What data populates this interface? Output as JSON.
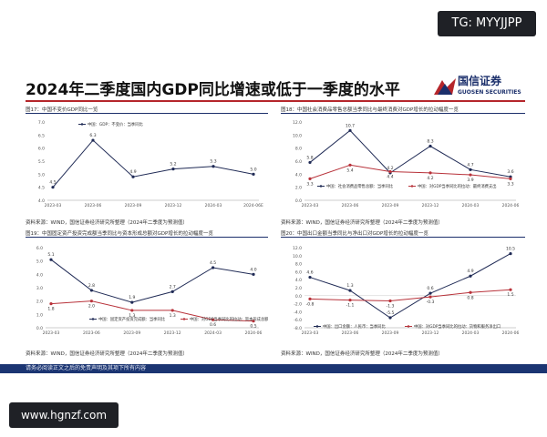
{
  "watermarks": {
    "top": "TG: MYYJJPP",
    "bottom": "www.hgnzf.com"
  },
  "slide": {
    "title": "2024年二季度国内GDP同比增速或低于一季度的水平",
    "logo": {
      "cn": "国信证券",
      "en": "GUOSEN SECURITIES"
    },
    "disclaimer": "请务必阅读正文之后的免责声明及其项下所有内容"
  },
  "colors": {
    "navy": "#1b2f6b",
    "red": "#b5262b",
    "series_blue": "#1f2a55",
    "series_red": "#b8323a"
  },
  "panels": [
    {
      "caption": "图17：中国不变价GDP同比一览",
      "source": "资料来源：WIND，国信证券经济研究所整理（2024年二季度为预测值）"
    },
    {
      "caption": "图18：中国社会消费品零售总额当季同比与最终消费对GDP增长的拉动幅度一览",
      "source": "资料来源：WIND，国信证券经济研究所整理（2024年二季度为预测值）"
    },
    {
      "caption": "图19：中国固定资产投资完成额当季同比与资本形成总额对GDP增长的拉动幅度一览",
      "source": "资料来源：WIND，国信证券经济研究所整理（2024年二季度为预测值）"
    },
    {
      "caption": "图20：中国出口金额当季同比与净出口对GDP增长的拉动幅度一览",
      "source": "资料来源：WIND，国信证券经济研究所整理（2024年二季度为预测值）"
    }
  ],
  "chart_data": [
    {
      "type": "line",
      "categories": [
        "2023-03",
        "2023-06",
        "2023-09",
        "2023-12",
        "2024-03",
        "2024-06E"
      ],
      "ylim": [
        4,
        7
      ],
      "yticks": [
        "4.0",
        "4.5",
        "5.0",
        "5.5",
        "6.0",
        "6.5",
        "7.0"
      ],
      "series": [
        {
          "name": "中国：GDP：不变价：当季同比",
          "values": [
            4.5,
            6.3,
            4.9,
            5.2,
            5.3,
            5.0
          ],
          "labels": [
            "4.5",
            "6.3",
            "4.9",
            "5.2",
            "5.3",
            "5.0"
          ]
        }
      ]
    },
    {
      "type": "line",
      "categories": [
        "2023-03",
        "2023-06",
        "2023-09",
        "2023-12",
        "2024-03",
        "2024-06"
      ],
      "ylim": [
        0,
        12
      ],
      "yticks": [
        "0.0",
        "2.0",
        "4.0",
        "6.0",
        "8.0",
        "10.0",
        "12.0"
      ],
      "series": [
        {
          "name": "中国：社会消费品零售总额：当季同比",
          "values": [
            5.8,
            10.7,
            4.2,
            8.3,
            4.7,
            3.6
          ],
          "labels": [
            "5.8",
            "10.7",
            "4.2",
            "8.3",
            "4.7",
            "3.6"
          ]
        },
        {
          "name": "中国：对GDP当季同比的拉动：最终消费支出",
          "values": [
            3.3,
            5.4,
            4.4,
            4.2,
            3.9,
            3.3
          ],
          "labels": [
            "3.3",
            "5.4",
            "4.4",
            "4.2",
            "3.9",
            "3.3"
          ]
        }
      ]
    },
    {
      "type": "line",
      "categories": [
        "2023-03",
        "2023-06",
        "2023-09",
        "2023-12",
        "2024-03",
        "2024-06"
      ],
      "ylim": [
        0,
        6
      ],
      "yticks": [
        "0.0",
        "1.0",
        "2.0",
        "3.0",
        "4.0",
        "5.0",
        "6.0"
      ],
      "series": [
        {
          "name": "中国：固定资产投资完成额：当季同比",
          "values": [
            5.1,
            2.8,
            1.9,
            2.7,
            4.5,
            4.0
          ],
          "labels": [
            "5.1",
            "2.8",
            "1.9",
            "2.7",
            "4.5",
            "4.0"
          ]
        },
        {
          "name": "中国：对GDP当季同比的拉动：资本形成总额",
          "values": [
            1.8,
            2.0,
            1.3,
            1.3,
            0.6,
            0.5
          ],
          "labels": [
            "1.8",
            "2.0",
            "1.3",
            "1.3",
            "0.6",
            "0.5"
          ]
        }
      ]
    },
    {
      "type": "line",
      "categories": [
        "2023-03",
        "2023-06",
        "2023-09",
        "2023-12",
        "2024-03",
        "2024-06"
      ],
      "ylim": [
        -8,
        12
      ],
      "yticks": [
        "-8.0",
        "-6.0",
        "-4.0",
        "-2.0",
        "0.0",
        "2.0",
        "4.0",
        "6.0",
        "8.0",
        "10.0",
        "12.0"
      ],
      "series": [
        {
          "name": "中国：出口金额：人民币：当季同比",
          "values": [
            4.6,
            1.3,
            -5.5,
            0.6,
            4.9,
            10.5
          ],
          "labels": [
            "4.6",
            "1.3",
            "-5.5",
            "0.6",
            "4.9",
            "10.5"
          ]
        },
        {
          "name": "中国：对GDP当季同比的拉动：货物和服务净出口",
          "values": [
            -0.8,
            -1.1,
            -1.3,
            -0.3,
            0.8,
            1.5
          ],
          "labels": [
            "-0.8",
            "-1.1",
            "-1.3",
            "-0.3",
            "0.8",
            "1.5"
          ]
        }
      ]
    }
  ]
}
